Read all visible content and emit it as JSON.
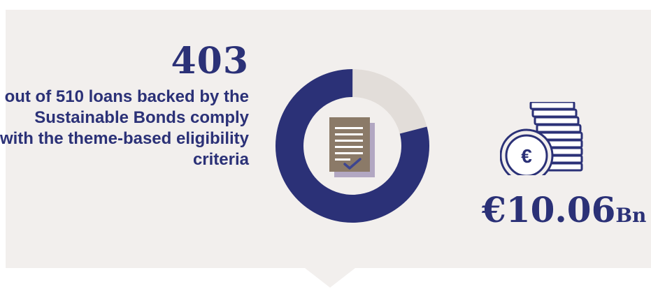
{
  "stat": {
    "count": "403",
    "description": "out of 510 loans backed by the Sustainable Bonds comply with the theme-based eligibility criteria",
    "compliant_loans": 403,
    "total_loans": 510
  },
  "amount": {
    "value": "€10.06",
    "unit": "Bn"
  },
  "icons": {
    "document": "document-check-icon",
    "coins": "euro-coins-stack-icon"
  },
  "colors": {
    "navy": "#2b3177",
    "panel": "#f2efed",
    "donut_track": "#e2ddd9",
    "document": "#8b7a68"
  }
}
